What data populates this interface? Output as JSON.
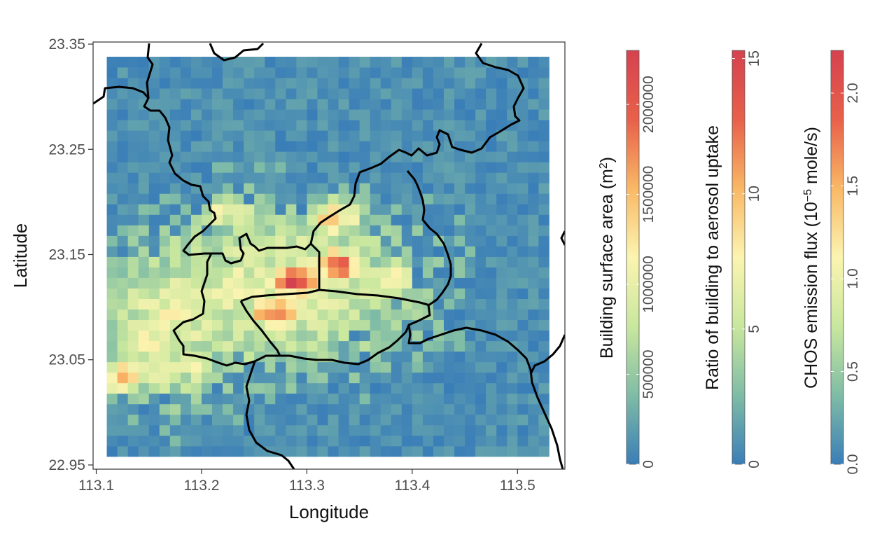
{
  "chart_data": {
    "type": "heatmap",
    "title": "",
    "xlabel": "Longitude",
    "ylabel": "Latitude",
    "xlim": [
      113.097,
      113.545
    ],
    "ylim": [
      22.946,
      23.352
    ],
    "xticks": [
      113.1,
      113.2,
      113.3,
      113.4,
      113.5
    ],
    "xtick_labels": [
      "113.1",
      "113.2",
      "113.3",
      "113.4",
      "113.5"
    ],
    "yticks": [
      22.95,
      23.05,
      23.15,
      23.25,
      23.35
    ],
    "ytick_labels": [
      "22.95",
      "23.05",
      "23.15",
      "23.25",
      "23.35"
    ],
    "grid": false,
    "colormap": "Spectral (reversed)",
    "palette": [
      "#3a7eb8",
      "#7fbca6",
      "#c9e79e",
      "#fbf4b0",
      "#f9b866",
      "#e8604a",
      "#d5424f"
    ],
    "grid_x_range": [
      113.11,
      113.53
    ],
    "grid_y_range": [
      22.958,
      23.338
    ],
    "grid_cols": 42,
    "grid_rows": 38,
    "values_note": "Cell values given as normalized intensity 0-1 (fraction of colorbar range).",
    "hotspots": [
      {
        "lon": 113.29,
        "lat": 23.125,
        "value": 0.95
      },
      {
        "lon": 113.27,
        "lat": 23.095,
        "value": 0.78
      },
      {
        "lon": 113.33,
        "lat": 23.14,
        "value": 0.8
      },
      {
        "lon": 113.325,
        "lat": 23.185,
        "value": 0.62
      },
      {
        "lon": 113.125,
        "lat": 23.035,
        "value": 0.62
      },
      {
        "lon": 113.19,
        "lat": 23.045,
        "value": 0.5
      },
      {
        "lon": 113.23,
        "lat": 23.19,
        "value": 0.5
      },
      {
        "lon": 113.38,
        "lat": 23.13,
        "value": 0.5
      }
    ],
    "colorbars": [
      {
        "title_main": "Building surface area (m",
        "title_sup": "2",
        "title_tail": ")",
        "ticks": [
          0,
          500000,
          1000000,
          1500000,
          2000000
        ],
        "tick_labels": [
          "0",
          "500000",
          "1000000",
          "1500000",
          "2000000"
        ],
        "range": [
          0,
          2300000
        ]
      },
      {
        "title_main": "Ratio of building to aerosol uptake",
        "title_sup": "",
        "title_tail": "",
        "ticks": [
          0,
          5,
          10,
          15
        ],
        "tick_labels": [
          "0",
          "5",
          "10",
          "15"
        ],
        "range": [
          0,
          15.3
        ]
      },
      {
        "title_main": "CHOS emission flux (10",
        "title_sup": "−5",
        "title_tail": " mole/s)",
        "ticks": [
          0,
          0.5,
          1.0,
          1.5,
          2.0
        ],
        "tick_labels": [
          "0.0",
          "0.5",
          "1.0",
          "1.5",
          "2.0"
        ],
        "range": [
          0,
          2.23
        ]
      }
    ]
  }
}
